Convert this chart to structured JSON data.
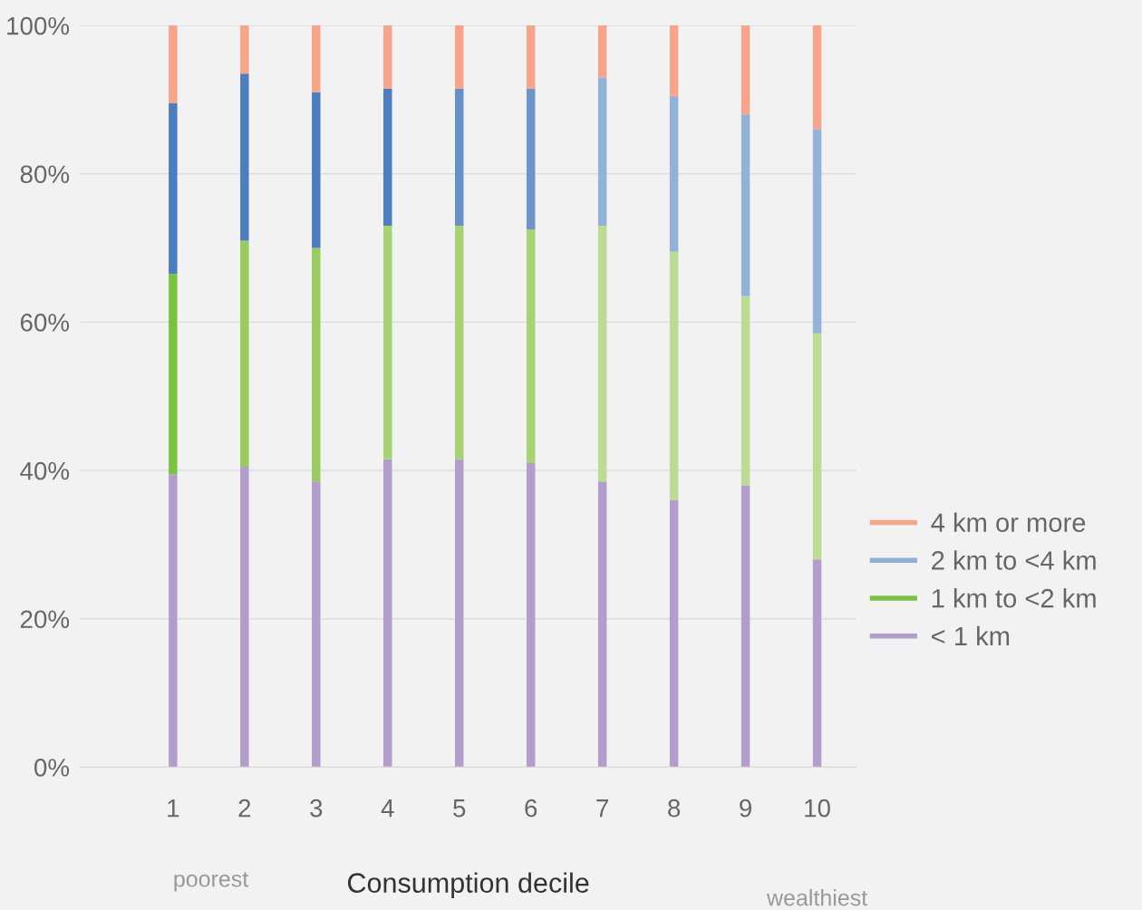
{
  "chart_data": {
    "type": "bar",
    "stacked": true,
    "xlabel": "Consumption decile",
    "categories": [
      "1",
      "2",
      "3",
      "4",
      "5",
      "6",
      "7",
      "8",
      "9",
      "10"
    ],
    "series": [
      {
        "name": "< 1 km",
        "color": "#b39dcc",
        "values": [
          39.5,
          40.5,
          38.5,
          41.5,
          41.5,
          41,
          38.5,
          36,
          38,
          28
        ]
      },
      {
        "name": "1 km to <2 km",
        "color": "#7cc242",
        "colors": [
          "#7cc242",
          "#98cc5e",
          "#98cc5e",
          "#a6d473",
          "#a6d473",
          "#a6d473",
          "#bcdc94",
          "#bcdc94",
          "#bcdc94",
          "#bcdc94"
        ],
        "values": [
          27,
          30.5,
          31.5,
          31.5,
          31.5,
          31.5,
          34.5,
          33.5,
          25.5,
          30.5
        ]
      },
      {
        "name": "2 km to <4 km",
        "color": "#8fb0d8",
        "colors": [
          "#4c7dc0",
          "#4c7dc0",
          "#4c7dc0",
          "#4c7dc0",
          "#6690c8",
          "#6d95ca",
          "#93b2d7",
          "#93b2d7",
          "#93b2d7",
          "#93b2d7"
        ],
        "values": [
          23,
          22.5,
          21,
          18.5,
          18.5,
          19,
          20,
          21,
          24.5,
          27.5
        ]
      },
      {
        "name": "4 km or more",
        "color": "#f7a58a",
        "values": [
          10.5,
          6.5,
          9,
          8.5,
          8.5,
          8.5,
          7,
          9.5,
          12,
          14
        ]
      }
    ],
    "ylim": [
      0,
      100
    ],
    "yticks": [
      {
        "value": 0,
        "label": "0%"
      },
      {
        "value": 20,
        "label": "20%"
      },
      {
        "value": 40,
        "label": "40%"
      },
      {
        "value": 60,
        "label": "60%"
      },
      {
        "value": 80,
        "label": "80%"
      },
      {
        "value": 100,
        "label": "100%"
      }
    ],
    "grid": "y",
    "legend": "right",
    "annotations": [
      "poorest",
      "wealthiest"
    ]
  }
}
